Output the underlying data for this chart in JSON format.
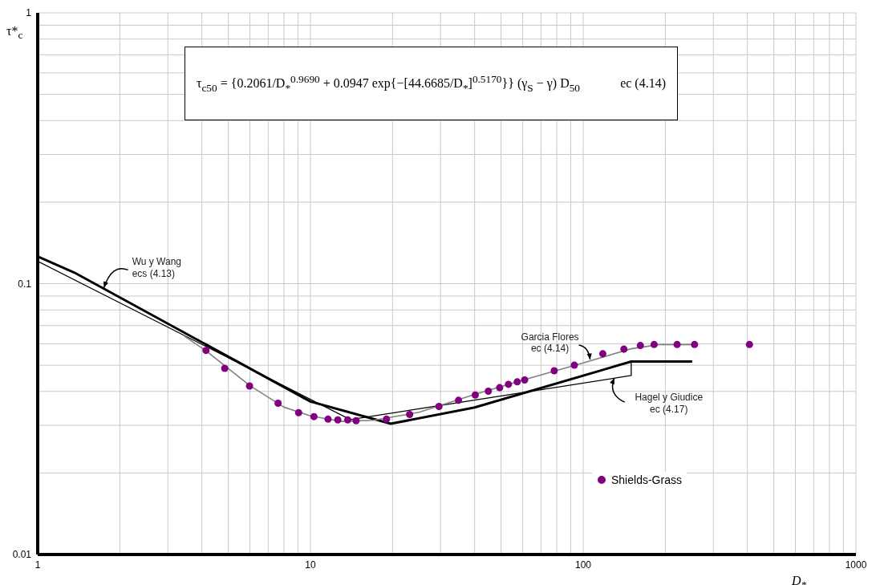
{
  "chart_data": {
    "type": "line",
    "xlabel": "D$_{*}$",
    "ylabel": "τ*$_{c}$",
    "xlim": [
      1,
      1000
    ],
    "xticks": [
      1,
      {
        "value": 2,
        "label": null
      },
      {
        "value": 3,
        "label": null
      },
      {
        "value": 4,
        "label": null
      },
      {
        "value": 5,
        "label": null
      },
      {
        "value": 6,
        "label": null
      },
      {
        "value": 7,
        "label": null
      },
      {
        "value": 8,
        "label": null
      },
      {
        "value": 9,
        "label": null
      },
      10,
      {
        "value": 20,
        "label": null
      },
      {
        "value": 30,
        "label": null
      },
      {
        "value": 40,
        "label": null
      },
      {
        "value": 50,
        "label": null
      },
      {
        "value": 60,
        "label": null
      },
      {
        "value": 70,
        "label": null
      },
      {
        "value": 80,
        "label": null
      },
      {
        "value": 90,
        "label": null
      },
      100,
      {
        "value": 200,
        "label": null
      },
      {
        "value": 300,
        "label": null
      },
      {
        "value": 400,
        "label": null
      },
      {
        "value": 500,
        "label": null
      },
      {
        "value": 600,
        "label": null
      },
      {
        "value": 700,
        "label": null
      },
      {
        "value": 800,
        "label": null
      },
      {
        "value": 900,
        "label": null
      },
      1000
    ],
    "ylim": [
      0.01,
      1
    ],
    "yticks": [
      0.01,
      {
        "value": 0.02,
        "label": null
      },
      {
        "value": 0.03,
        "label": null
      },
      {
        "value": 0.04,
        "label": null
      },
      {
        "value": 0.05,
        "label": null
      },
      {
        "value": 0.06,
        "label": null
      },
      {
        "value": 0.07,
        "label": null
      },
      {
        "value": 0.08,
        "label": null
      },
      {
        "value": 0.09,
        "label": null
      },
      0.1,
      {
        "value": 0.2,
        "label": null
      },
      {
        "value": 0.3,
        "label": null
      },
      {
        "value": 0.4,
        "label": null
      },
      {
        "value": 0.5,
        "label": null
      },
      {
        "value": 0.6,
        "label": null
      },
      {
        "value": 0.7,
        "label": null
      },
      {
        "value": 0.8,
        "label": null
      },
      {
        "value": 0.9,
        "label": null
      },
      1
    ],
    "log": "xy",
    "grid": true,
    "legend": "bottom right",
    "marker": "none",
    "series": [
      {
        "color": "#000000",
        "x": [
          1,
          1.36,
          10,
          19.7,
          40,
          150,
          251
        ],
        "values": [
          0.126,
          0.11,
          0.0367,
          0.0304,
          0.0349,
          0.0516,
          0.0516
        ]
      },
      {
        "color": "#000000",
        "x": [
          1,
          14,
          150,
          150
        ],
        "values": [
          0.121,
          0.0315,
          0.0458,
          0.0516
        ]
      },
      {
        "color": "#808080",
        "x": [
          3.45,
          4.14,
          6,
          8,
          10,
          13,
          17,
          25,
          40,
          60,
          100,
          150,
          190,
          256
        ],
        "values": [
          0.064,
          0.0565,
          0.042,
          0.035,
          0.0325,
          0.031,
          0.0313,
          0.0335,
          0.039,
          0.044,
          0.051,
          0.0575,
          0.0596,
          0.0596
        ]
      },
      {
        "type": "scatter",
        "name": "Shields-Grass",
        "color": "#800080",
        "marker": "circle",
        "x": [
          4.14,
          4.85,
          5.98,
          7.61,
          9.05,
          10.3,
          11.6,
          12.6,
          13.7,
          14.7,
          19,
          23.1,
          29.6,
          34.9,
          40.2,
          44.9,
          49.4,
          53.2,
          57.3,
          61,
          78.3,
          92.8,
          118,
          141,
          162,
          182,
          221,
          256,
          407
        ],
        "values": [
          0.0567,
          0.0487,
          0.0419,
          0.0362,
          0.0334,
          0.0323,
          0.0316,
          0.0314,
          0.0314,
          0.0312,
          0.0316,
          0.0329,
          0.0352,
          0.0371,
          0.0388,
          0.0401,
          0.0413,
          0.0425,
          0.0434,
          0.0441,
          0.0477,
          0.05,
          0.0551,
          0.0573,
          0.0591,
          0.0596,
          0.0596,
          0.0596,
          0.0596
        ]
      }
    ],
    "annotations": [
      "τ$_{c50}$  =  {0.2061/D$_{*}$$^{0.9690}$ + 0.0947 exp{−[44.6685/D$_{*}$]$^{0.5170}$}} (γ$_{S}$ − γ) D$_{50}$",
      "ec (4.14)",
      {
        "text": "Wu y Wang\necs (4.13)",
        "x": 1.75,
        "y": 0.0967
      },
      {
        "text": "Garcia Flores\nec (4.14)",
        "x": 106,
        "y": 0.0525
      },
      {
        "text": "Hagel y Giudice\nec (4.17)",
        "x": 130,
        "y": 0.0448
      }
    ]
  }
}
